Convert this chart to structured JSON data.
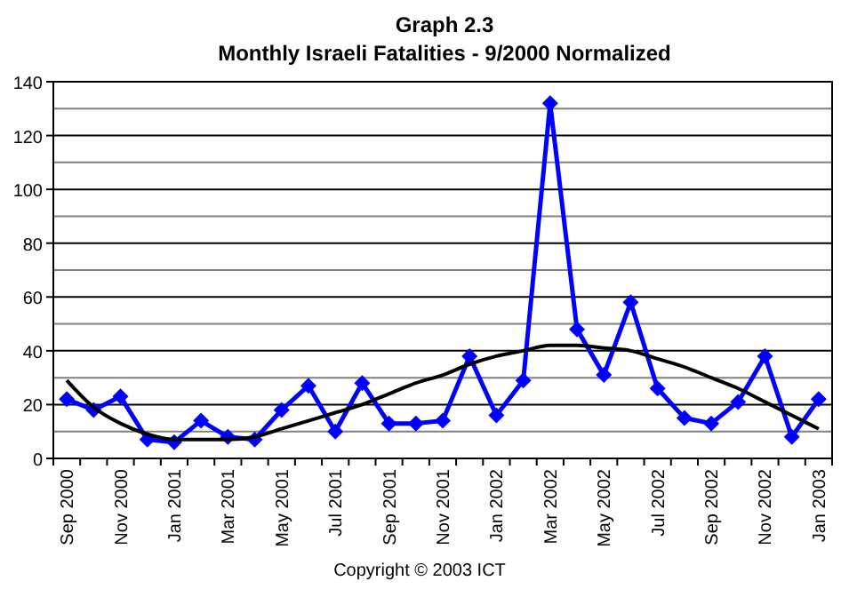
{
  "chart_data": {
    "type": "line",
    "title": "Graph 2.3",
    "subtitle": "Monthly Israeli Fatalities - 9/2000 Normalized",
    "categories": [
      "Sep 2000",
      null,
      "Nov 2000",
      null,
      "Jan 2001",
      null,
      "Mar 2001",
      null,
      "May 2001",
      null,
      "Jul 2001",
      null,
      "Sep 2001",
      null,
      "Nov 2001",
      null,
      "Jan 2002",
      null,
      "Mar 2002",
      null,
      "May 2002",
      null,
      "Jul 2002",
      null,
      "Sep 2002",
      null,
      "Nov 2002",
      null,
      "Jan 2003"
    ],
    "series": [
      {
        "color": "#0000ff",
        "marker": "diamond",
        "values": [
          22,
          18,
          23,
          7,
          6,
          14,
          8,
          7,
          18,
          27,
          10,
          28,
          13,
          13,
          14,
          38,
          16,
          29,
          132,
          48,
          31,
          58,
          26,
          15,
          13,
          21,
          38,
          8,
          22
        ]
      },
      {
        "color": "#000000",
        "marker": "none",
        "values": [
          29,
          19,
          13,
          9,
          7,
          7,
          7,
          8,
          11,
          14,
          17,
          20,
          24,
          28,
          31,
          35,
          38,
          40,
          42,
          42,
          41,
          40,
          37,
          34,
          30,
          26,
          21,
          16,
          11
        ]
      }
    ],
    "ylim": [
      0,
      140
    ],
    "yticks": [
      0,
      20,
      40,
      60,
      80,
      100,
      120,
      140
    ],
    "grid": "y",
    "annotations": [
      "Copyright © 2003 ICT"
    ]
  }
}
